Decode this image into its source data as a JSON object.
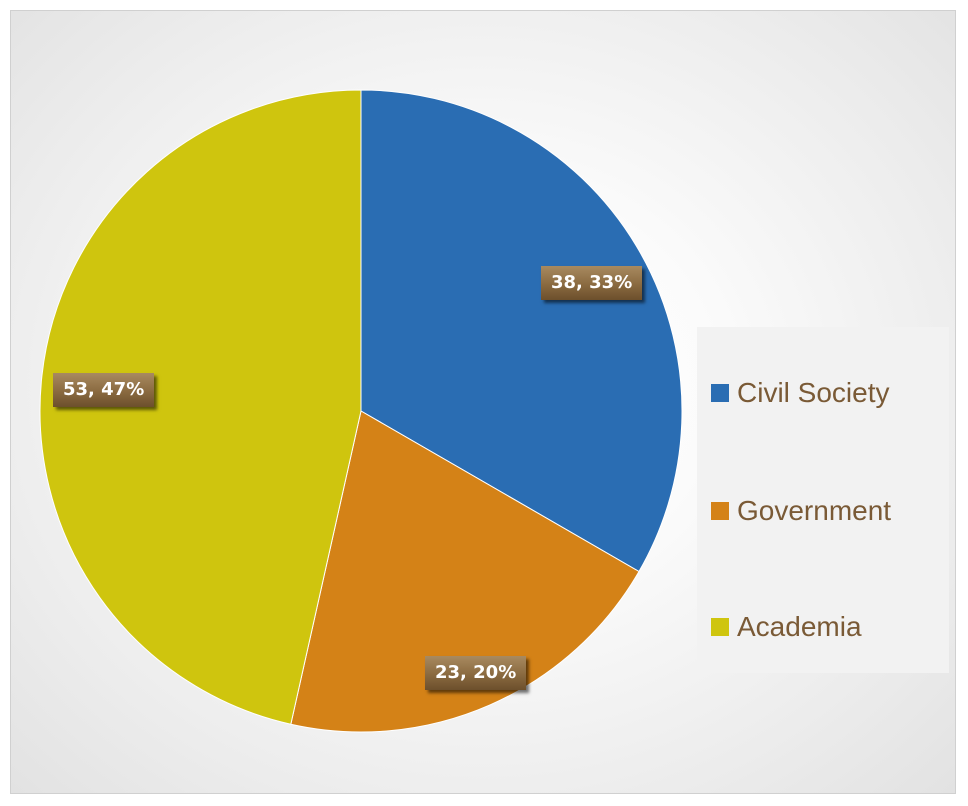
{
  "chart_data": {
    "type": "pie",
    "title": "",
    "categories": [
      "Civil Society",
      "Government",
      "Academia"
    ],
    "values": [
      38,
      23,
      53
    ],
    "percents": [
      33,
      20,
      47
    ],
    "data_labels": [
      "38, 33%",
      "23, 20%",
      "53, 47%"
    ],
    "colors": [
      "#2a6db3",
      "#d48217",
      "#cfc50e"
    ],
    "start_angle": "12 o'clock, clockwise",
    "legend_position": "right",
    "legend": [
      {
        "label": "Civil Society",
        "color": "#2a6db3"
      },
      {
        "label": "Government",
        "color": "#d48217"
      },
      {
        "label": "Academia",
        "color": "#cfc50e"
      }
    ]
  }
}
